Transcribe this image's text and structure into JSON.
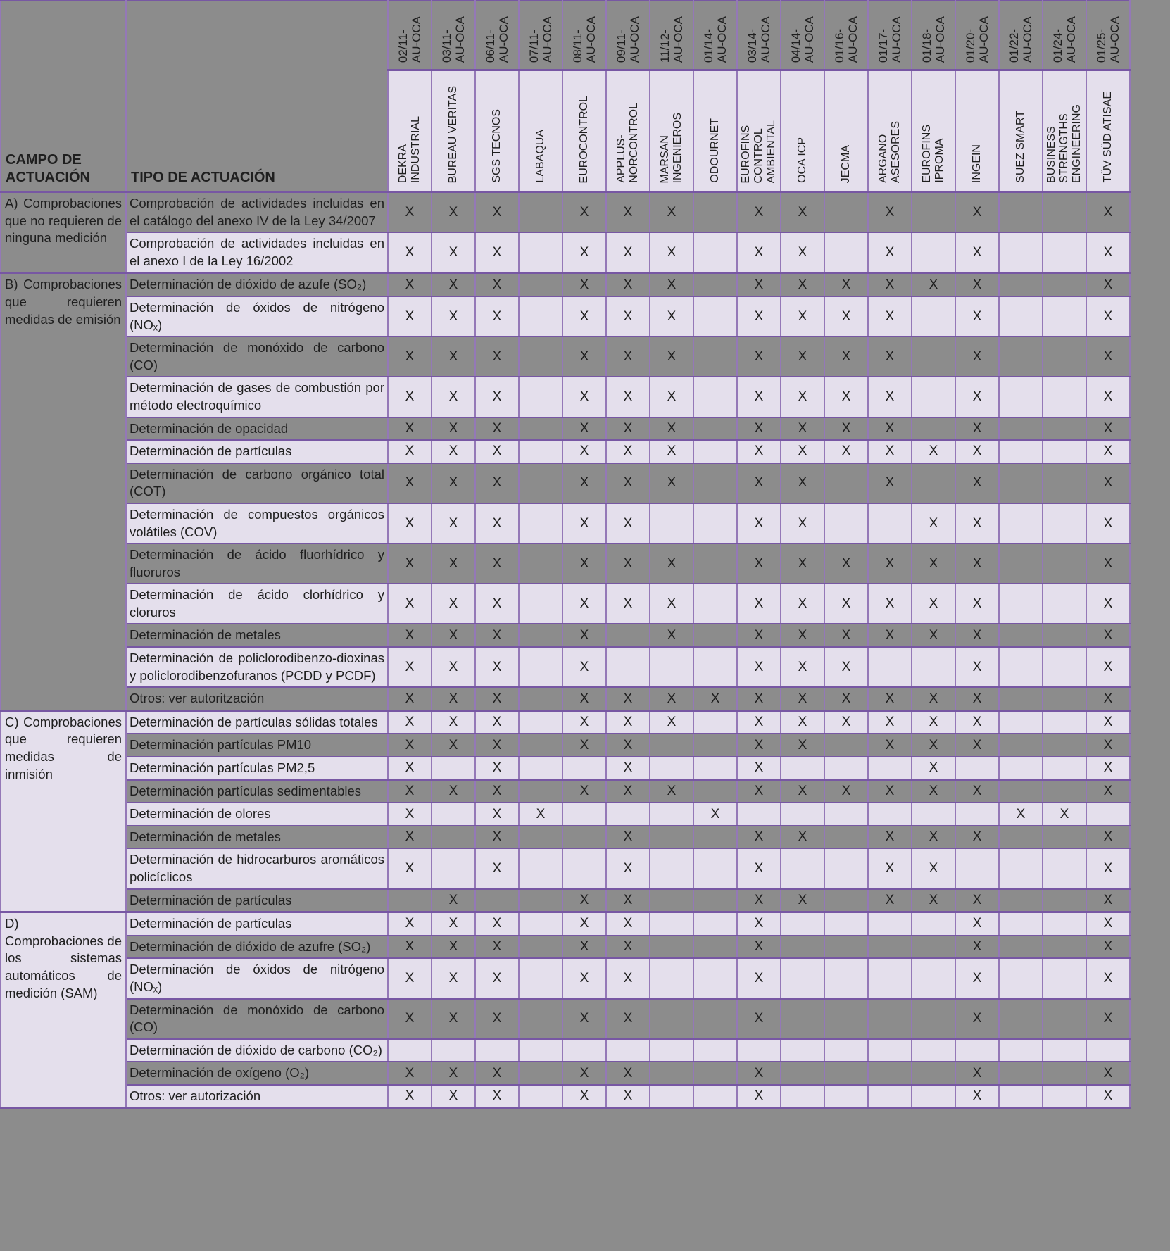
{
  "table": {
    "field_header": "CAMPO DE ACTUACIÓN",
    "type_header": "TIPO DE ACTUACIÓN",
    "mark": "X",
    "colors": {
      "dark_cell": "#8c8c8c",
      "light_cell": "#e4dfec",
      "border": "#7757a3",
      "border_light": "#9478b7",
      "text": "#1f1f1f"
    },
    "columns": [
      {
        "code": "02/11-\nAU-OCA",
        "company": "DEKRA\nINDUSTRIAL"
      },
      {
        "code": "03/11-\nAU-OCA",
        "company": "BUREAU VERITAS"
      },
      {
        "code": "06/11-\nAU-OCA",
        "company": "SGS TECNOS"
      },
      {
        "code": "07/11-\nAU-OCA",
        "company": "LABAQUA"
      },
      {
        "code": "08/11-\nAU-OCA",
        "company": "EUROCONTROL"
      },
      {
        "code": "09/11-\nAU-OCA",
        "company": "APPLUS-\nNORCONTROL"
      },
      {
        "code": "11/12-\nAU-OCA",
        "company": "MARSAN\nINGENIEROS"
      },
      {
        "code": "01/14-\nAU-OCA",
        "company": "ODOURNET"
      },
      {
        "code": "03/14-\nAU-OCA",
        "company": "EUROFINS\nCONTROL\nAMBIENTAL"
      },
      {
        "code": "04/14-\nAU-OCA",
        "company": "OCA ICP"
      },
      {
        "code": "01/16-\nAU-OCA",
        "company": "JECMA"
      },
      {
        "code": "01/17-\nAU-OCA",
        "company": "ARGANO\nASESORES"
      },
      {
        "code": "01/18-\nAU-OCA",
        "company": "EUROFINS\nIPROMA"
      },
      {
        "code": "01/20-\nAU-OCA",
        "company": "INGEIN"
      },
      {
        "code": "01/22-\nAU-OCA",
        "company": "SUEZ SMART"
      },
      {
        "code": "01/24-\nAU-OCA",
        "company": "BUSINESS\nSTRENGTHS\nENGINEERING"
      },
      {
        "code": "01/25-\nAU-OCA",
        "company": "TÜV SÜD ATISAE"
      }
    ],
    "groups": [
      {
        "label": "A) Comprobaciones que no requieren de ninguna medición",
        "shade": "dark",
        "rows": [
          {
            "label": "Comprobación de actividades incluidas en el catálogo del anexo IV de la Ley 34/2007",
            "shade": "dark",
            "marks": [
              1,
              1,
              1,
              0,
              1,
              1,
              1,
              0,
              1,
              1,
              0,
              1,
              0,
              1,
              0,
              0,
              1
            ]
          },
          {
            "label": "Comprobación de actividades incluidas en el anexo I de la Ley 16/2002",
            "shade": "light",
            "marks": [
              1,
              1,
              1,
              0,
              1,
              1,
              1,
              0,
              1,
              1,
              0,
              1,
              0,
              1,
              0,
              0,
              1
            ]
          }
        ]
      },
      {
        "label": "B) Comprobaciones que requieren medidas de emisión",
        "shade": "dark",
        "rows": [
          {
            "label": "Determinación de dióxido de azufe (SO₂)",
            "shade": "dark",
            "marks": [
              1,
              1,
              1,
              0,
              1,
              1,
              1,
              0,
              1,
              1,
              1,
              1,
              1,
              1,
              0,
              0,
              1
            ]
          },
          {
            "label": "Determinación de óxidos de nitrógeno (NOₓ)",
            "shade": "light",
            "marks": [
              1,
              1,
              1,
              0,
              1,
              1,
              1,
              0,
              1,
              1,
              1,
              1,
              0,
              1,
              0,
              0,
              1
            ]
          },
          {
            "label": "Determinación de monóxido de carbono (CO)",
            "shade": "dark",
            "marks": [
              1,
              1,
              1,
              0,
              1,
              1,
              1,
              0,
              1,
              1,
              1,
              1,
              0,
              1,
              0,
              0,
              1
            ]
          },
          {
            "label": "Determinación de gases de combustión por método electroquímico",
            "shade": "light",
            "marks": [
              1,
              1,
              1,
              0,
              1,
              1,
              1,
              0,
              1,
              1,
              1,
              1,
              0,
              1,
              0,
              0,
              1
            ]
          },
          {
            "label": "Determinación de opacidad",
            "shade": "dark",
            "marks": [
              1,
              1,
              1,
              0,
              1,
              1,
              1,
              0,
              1,
              1,
              1,
              1,
              0,
              1,
              0,
              0,
              1
            ]
          },
          {
            "label": "Determinación de partículas",
            "shade": "light",
            "marks": [
              1,
              1,
              1,
              0,
              1,
              1,
              1,
              0,
              1,
              1,
              1,
              1,
              1,
              1,
              0,
              0,
              1
            ]
          },
          {
            "label": "Determinación de carbono orgánico total (COT)",
            "shade": "dark",
            "marks": [
              1,
              1,
              1,
              0,
              1,
              1,
              1,
              0,
              1,
              1,
              0,
              1,
              0,
              1,
              0,
              0,
              1
            ]
          },
          {
            "label": "Determinación de compuestos orgánicos volátiles (COV)",
            "shade": "light",
            "marks": [
              1,
              1,
              1,
              0,
              1,
              1,
              0,
              0,
              1,
              1,
              0,
              0,
              1,
              1,
              0,
              0,
              1
            ]
          },
          {
            "label": "Determinación de ácido fluorhídrico y fluoruros",
            "shade": "dark",
            "marks": [
              1,
              1,
              1,
              0,
              1,
              1,
              1,
              0,
              1,
              1,
              1,
              1,
              1,
              1,
              0,
              0,
              1
            ]
          },
          {
            "label": "Determinación de ácido clorhídrico y cloruros",
            "shade": "light",
            "marks": [
              1,
              1,
              1,
              0,
              1,
              1,
              1,
              0,
              1,
              1,
              1,
              1,
              1,
              1,
              0,
              0,
              1
            ]
          },
          {
            "label": "Determinación de metales",
            "shade": "dark",
            "marks": [
              1,
              1,
              1,
              0,
              1,
              0,
              1,
              0,
              1,
              1,
              1,
              1,
              1,
              1,
              0,
              0,
              1
            ]
          },
          {
            "label": "Determinación de policlorodibenzo-dioxinas y policlorodibenzofuranos (PCDD y PCDF)",
            "shade": "light",
            "marks": [
              1,
              1,
              1,
              0,
              1,
              0,
              0,
              0,
              1,
              1,
              1,
              0,
              0,
              1,
              0,
              0,
              1
            ]
          },
          {
            "label": "Otros: ver autoritzación",
            "shade": "dark",
            "marks": [
              1,
              1,
              1,
              0,
              1,
              1,
              1,
              1,
              1,
              1,
              1,
              1,
              1,
              1,
              0,
              0,
              1
            ]
          }
        ]
      },
      {
        "label": "C) Comprobaciones que requieren medidas de inmisión",
        "shade": "light",
        "rows": [
          {
            "label": "Determinación de partículas sólidas totales",
            "shade": "light",
            "marks": [
              1,
              1,
              1,
              0,
              1,
              1,
              1,
              0,
              1,
              1,
              1,
              1,
              1,
              1,
              0,
              0,
              1
            ]
          },
          {
            "label": "Determinación partículas PM10",
            "shade": "dark",
            "marks": [
              1,
              1,
              1,
              0,
              1,
              1,
              0,
              0,
              1,
              1,
              0,
              1,
              1,
              1,
              0,
              0,
              1
            ]
          },
          {
            "label": "Determinación partículas PM2,5",
            "shade": "light",
            "marks": [
              1,
              0,
              1,
              0,
              0,
              1,
              0,
              0,
              1,
              0,
              0,
              0,
              1,
              0,
              0,
              0,
              1
            ]
          },
          {
            "label": "Determinación partículas sedimentables",
            "shade": "dark",
            "marks": [
              1,
              1,
              1,
              0,
              1,
              1,
              1,
              0,
              1,
              1,
              1,
              1,
              1,
              1,
              0,
              0,
              1
            ]
          },
          {
            "label": "Determinación de olores",
            "shade": "light",
            "marks": [
              1,
              0,
              1,
              1,
              0,
              0,
              0,
              1,
              0,
              0,
              0,
              0,
              0,
              0,
              1,
              1,
              0
            ]
          },
          {
            "label": "Determinación de metales",
            "shade": "dark",
            "marks": [
              1,
              0,
              1,
              0,
              0,
              1,
              0,
              0,
              1,
              1,
              0,
              1,
              1,
              1,
              0,
              0,
              1
            ]
          },
          {
            "label": "Determinación de hidrocarburos aromáticos policíclicos",
            "shade": "light",
            "marks": [
              1,
              0,
              1,
              0,
              0,
              1,
              0,
              0,
              1,
              0,
              0,
              1,
              1,
              0,
              0,
              0,
              1
            ]
          },
          {
            "label": "Determinación de partículas",
            "shade": "dark",
            "marks": [
              0,
              1,
              0,
              0,
              1,
              1,
              0,
              0,
              1,
              1,
              0,
              1,
              1,
              1,
              0,
              0,
              1
            ]
          }
        ]
      },
      {
        "label": "D)\nComprobaciones de los sistemas automáticos de medición (SAM)",
        "shade": "light",
        "rows": [
          {
            "label": "Determinación de partículas",
            "shade": "light",
            "marks": [
              1,
              1,
              1,
              0,
              1,
              1,
              0,
              0,
              1,
              0,
              0,
              0,
              0,
              1,
              0,
              0,
              1
            ]
          },
          {
            "label": "Determinación de dióxido de azufre (SO₂)",
            "shade": "dark",
            "marks": [
              1,
              1,
              1,
              0,
              1,
              1,
              0,
              0,
              1,
              0,
              0,
              0,
              0,
              1,
              0,
              0,
              1
            ]
          },
          {
            "label": "Determinación de óxidos de nitrógeno (NOₓ)",
            "shade": "light",
            "marks": [
              1,
              1,
              1,
              0,
              1,
              1,
              0,
              0,
              1,
              0,
              0,
              0,
              0,
              1,
              0,
              0,
              1
            ]
          },
          {
            "label": "Determinación de monóxido de carbono (CO)",
            "shade": "dark",
            "marks": [
              1,
              1,
              1,
              0,
              1,
              1,
              0,
              0,
              1,
              0,
              0,
              0,
              0,
              1,
              0,
              0,
              1
            ]
          },
          {
            "label": "Determinación de dióxido de carbono (CO₂)",
            "shade": "light",
            "marks": [
              0,
              0,
              0,
              0,
              0,
              0,
              0,
              0,
              0,
              0,
              0,
              0,
              0,
              0,
              0,
              0,
              0
            ]
          },
          {
            "label": "Determinación de oxígeno (O₂)",
            "shade": "dark",
            "marks": [
              1,
              1,
              1,
              0,
              1,
              1,
              0,
              0,
              1,
              0,
              0,
              0,
              0,
              1,
              0,
              0,
              1
            ]
          },
          {
            "label": "Otros: ver autorización",
            "shade": "light",
            "marks": [
              1,
              1,
              1,
              0,
              1,
              1,
              0,
              0,
              1,
              0,
              0,
              0,
              0,
              1,
              0,
              0,
              1
            ]
          }
        ]
      }
    ]
  }
}
